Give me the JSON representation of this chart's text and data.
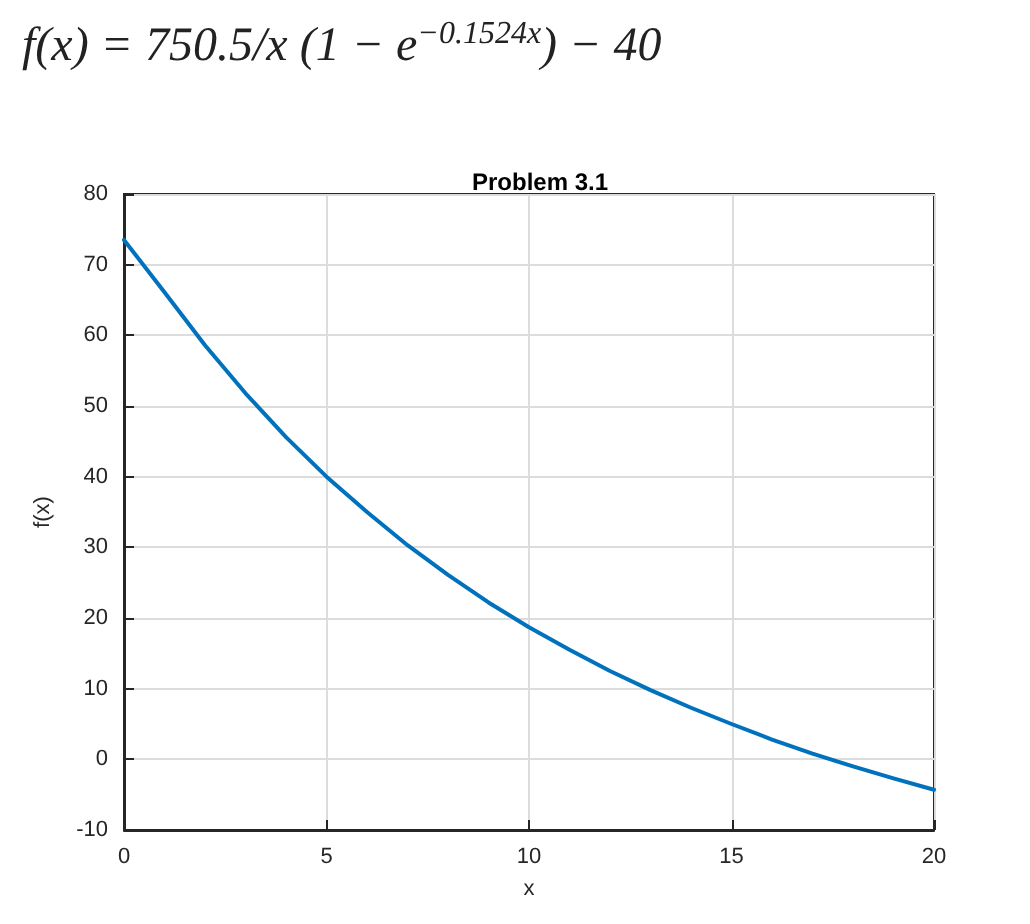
{
  "chart_data": {
    "type": "line",
    "title": "Problem 3.1",
    "xlabel": "x",
    "ylabel": "f(x)",
    "annotations": [
      "f(x) = 750.5/x (1 − e$^{−0.1524x}$) − 40"
    ],
    "x": [
      0,
      1,
      2,
      3,
      4,
      5,
      6,
      7,
      8,
      9,
      10,
      11,
      12,
      13,
      14,
      15,
      16,
      17,
      18,
      19,
      20
    ],
    "series": [
      {
        "color": "#0072bd",
        "values": [
          73.5,
          66.1,
          58.6,
          51.8,
          45.6,
          40.0,
          35.0,
          30.3,
          26.1,
          22.2,
          18.7,
          15.5,
          12.5,
          9.8,
          7.3,
          5.0,
          2.8,
          0.8,
          -1.0,
          -2.7,
          -4.3
        ]
      }
    ],
    "xlim": [
      0,
      20
    ],
    "xticks": [
      0,
      5,
      10,
      15,
      20
    ],
    "ylim": [
      -10,
      80
    ],
    "yticks": [
      -10,
      0,
      10,
      20,
      30,
      40,
      50,
      60,
      70,
      80
    ],
    "grid": true,
    "marker": "none",
    "line_style": "solid"
  }
}
